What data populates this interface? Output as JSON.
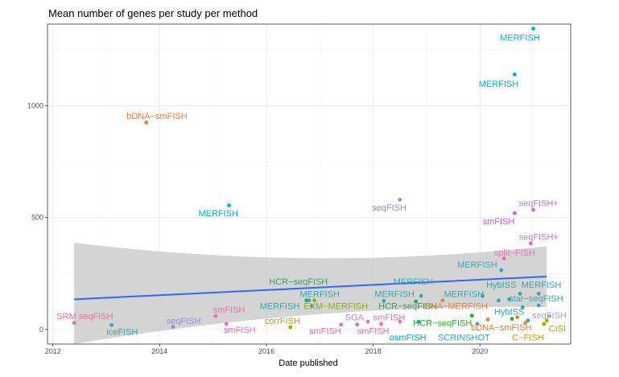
{
  "chart_data": {
    "type": "scatter",
    "title": "Mean number of genes per study per method",
    "xlabel": "Date published",
    "ylabel": "",
    "xlim": [
      2011.9,
      2021.7
    ],
    "ylim": [
      -65,
      1365
    ],
    "x_ticks": [
      {
        "value": 2012,
        "label": "2012"
      },
      {
        "value": 2014,
        "label": "2014"
      },
      {
        "value": 2016,
        "label": "2016"
      },
      {
        "value": 2018,
        "label": "2018"
      },
      {
        "value": 2020,
        "label": "2020"
      }
    ],
    "y_ticks": [
      {
        "value": 0,
        "label": "0"
      },
      {
        "value": 500,
        "label": "500"
      },
      {
        "value": 1000,
        "label": "1000"
      }
    ],
    "grid": true,
    "legend": "none",
    "trend": {
      "method": "linear",
      "x": [
        2012.4,
        2021.25
      ],
      "y": [
        135,
        237
      ],
      "band_lower": [
        -65,
        100
      ],
      "band_upper": [
        388,
        372
      ],
      "line_color": "#3366FF",
      "band_color": "#CCCCCC"
    },
    "points": [
      {
        "x": 2012.4,
        "y": 30,
        "color": "#E8709A"
      },
      {
        "x": 2013.1,
        "y": 20,
        "color": "#33A7A7"
      },
      {
        "x": 2013.75,
        "y": 925,
        "color": "#E8803A"
      },
      {
        "x": 2014.25,
        "y": 12,
        "color": "#8F8FDB"
      },
      {
        "x": 2015.05,
        "y": 60,
        "color": "#E870B0"
      },
      {
        "x": 2015.25,
        "y": 25,
        "color": "#E870B0"
      },
      {
        "x": 2015.3,
        "y": 555,
        "color": "#00B8C0"
      },
      {
        "x": 2016.45,
        "y": 10,
        "color": "#A8A800"
      },
      {
        "x": 2016.75,
        "y": 130,
        "color": "#2BA560"
      },
      {
        "x": 2016.8,
        "y": 130,
        "color": "#33A7B5"
      },
      {
        "x": 2016.85,
        "y": 105,
        "color": "#33A7B5"
      },
      {
        "x": 2016.9,
        "y": 130,
        "color": "#8FB000"
      },
      {
        "x": 2017.4,
        "y": 22,
        "color": "#E870B0"
      },
      {
        "x": 2017.7,
        "y": 22,
        "color": "#E8709A"
      },
      {
        "x": 2017.9,
        "y": 35,
        "color": "#E870D0"
      },
      {
        "x": 2018.15,
        "y": 25,
        "color": "#E870B0"
      },
      {
        "x": 2018.2,
        "y": 128,
        "color": "#33A7B5"
      },
      {
        "x": 2018.5,
        "y": 35,
        "color": "#E870D0"
      },
      {
        "x": 2018.5,
        "y": 580,
        "color": "#8F8FDB"
      },
      {
        "x": 2018.8,
        "y": 125,
        "color": "#2BA560"
      },
      {
        "x": 2018.85,
        "y": 35,
        "color": "#00A8C8"
      },
      {
        "x": 2018.9,
        "y": 150,
        "color": "#33A7B5"
      },
      {
        "x": 2019.3,
        "y": 130,
        "color": "#E8803A"
      },
      {
        "x": 2019.85,
        "y": 62,
        "color": "#22B222"
      },
      {
        "x": 2019.95,
        "y": 25,
        "color": "#33A0E0"
      },
      {
        "x": 2020.05,
        "y": 150,
        "color": "#33A7B5"
      },
      {
        "x": 2020.15,
        "y": 45,
        "color": "#E8803A"
      },
      {
        "x": 2020.35,
        "y": 130,
        "color": "#33A7A7"
      },
      {
        "x": 2020.4,
        "y": 265,
        "color": "#33A7B5"
      },
      {
        "x": 2020.45,
        "y": 318,
        "color": "#E870B0"
      },
      {
        "x": 2020.55,
        "y": 135,
        "color": "#33A7A7"
      },
      {
        "x": 2020.6,
        "y": 48,
        "color": "#22B222"
      },
      {
        "x": 2020.65,
        "y": 520,
        "color": "#E850D0"
      },
      {
        "x": 2020.65,
        "y": 1140,
        "color": "#00B8C0"
      },
      {
        "x": 2020.7,
        "y": 55,
        "color": "#E8803A"
      },
      {
        "x": 2020.75,
        "y": 160,
        "color": "#33A7B5"
      },
      {
        "x": 2020.8,
        "y": 100,
        "color": "#33A7B5"
      },
      {
        "x": 2020.85,
        "y": 30,
        "color": "#E8803A"
      },
      {
        "x": 2020.9,
        "y": 40,
        "color": "#33A7A7"
      },
      {
        "x": 2020.95,
        "y": 385,
        "color": "#D070E8"
      },
      {
        "x": 2021.0,
        "y": 535,
        "color": "#D070E8"
      },
      {
        "x": 2021.0,
        "y": 1345,
        "color": "#00B8C0"
      },
      {
        "x": 2021.1,
        "y": 160,
        "color": "#33A7B5"
      },
      {
        "x": 2021.1,
        "y": 108,
        "color": "#3399E8"
      },
      {
        "x": 2021.2,
        "y": 25,
        "color": "#A8A800"
      },
      {
        "x": 2021.25,
        "y": 40,
        "color": "#C8A000"
      },
      {
        "x": 2021.3,
        "y": 60,
        "color": "#A8A0E8"
      }
    ],
    "labels": [
      {
        "text": "MERFISH",
        "x": 2020.75,
        "y": 1305,
        "color": "#00B8C0"
      },
      {
        "text": "MERFISH",
        "x": 2020.35,
        "y": 1100,
        "color": "#00B8C0"
      },
      {
        "text": "bDNA−smFISH",
        "x": 2013.95,
        "y": 955,
        "color": "#E8803A"
      },
      {
        "text": "seqFISH",
        "x": 2018.3,
        "y": 545,
        "color": "#8F8FDB"
      },
      {
        "text": "MERFISH",
        "x": 2015.1,
        "y": 520,
        "color": "#00B8C0"
      },
      {
        "text": "seqFISH+",
        "x": 2021.1,
        "y": 565,
        "color": "#D070E8"
      },
      {
        "text": "smFISH",
        "x": 2020.35,
        "y": 485,
        "color": "#E850D0"
      },
      {
        "text": "seqFISH+",
        "x": 2021.1,
        "y": 415,
        "color": "#D070E8"
      },
      {
        "text": "split−FISH",
        "x": 2020.65,
        "y": 345,
        "color": "#E870B0"
      },
      {
        "text": "MERFISH",
        "x": 2019.95,
        "y": 290,
        "color": "#33A7B5"
      },
      {
        "text": "HCR−seqFISH",
        "x": 2016.6,
        "y": 215,
        "color": "#2BA560"
      },
      {
        "text": "MERFISH",
        "x": 2018.75,
        "y": 215,
        "color": "#33A7B5"
      },
      {
        "text": "HybISS",
        "x": 2020.4,
        "y": 200,
        "color": "#33A7A7"
      },
      {
        "text": "MERFISH",
        "x": 2021.15,
        "y": 200,
        "color": "#33A7B5"
      },
      {
        "text": "MERFISH",
        "x": 2017.0,
        "y": 160,
        "color": "#33A7B5"
      },
      {
        "text": "MERFISH",
        "x": 2018.4,
        "y": 160,
        "color": "#33A7B5"
      },
      {
        "text": "MERFISH",
        "x": 2019.7,
        "y": 160,
        "color": "#33A7B5"
      },
      {
        "text": "star−seqFISH",
        "x": 2021.05,
        "y": 140,
        "color": "#33A7B5"
      },
      {
        "text": "MERFISH",
        "x": 2016.25,
        "y": 105,
        "color": "#33A7B5"
      },
      {
        "text": "EXM−MERFISH",
        "x": 2017.3,
        "y": 105,
        "color": "#8FB000"
      },
      {
        "text": "HCR−seqFISH",
        "x": 2018.65,
        "y": 105,
        "color": "#2BA560"
      },
      {
        "text": "DNA−MERFISH",
        "x": 2019.55,
        "y": 105,
        "color": "#E8803A"
      },
      {
        "text": "HybISS",
        "x": 2020.55,
        "y": 80,
        "color": "#33A7A7"
      },
      {
        "text": "SRM seqFISH",
        "x": 2012.6,
        "y": 60,
        "color": "#E8709A"
      },
      {
        "text": "smFISH",
        "x": 2015.3,
        "y": 90,
        "color": "#E870B0"
      },
      {
        "text": "SGA",
        "x": 2017.65,
        "y": 55,
        "color": "#E870D0"
      },
      {
        "text": "smFISH",
        "x": 2018.3,
        "y": 55,
        "color": "#E870B0"
      },
      {
        "text": "seqFISH",
        "x": 2021.3,
        "y": 65,
        "color": "#A8A0E8"
      },
      {
        "text": "seqFISH",
        "x": 2014.45,
        "y": 40,
        "color": "#8F8FDB"
      },
      {
        "text": "corrFISH",
        "x": 2016.3,
        "y": 40,
        "color": "#A8A800"
      },
      {
        "text": "HCR−seqFISH",
        "x": 2019.3,
        "y": 30,
        "color": "#22B222"
      },
      {
        "text": "bDNA−smFISH",
        "x": 2020.4,
        "y": 10,
        "color": "#E8803A"
      },
      {
        "text": "CISI",
        "x": 2021.45,
        "y": 5,
        "color": "#C8A000"
      },
      {
        "text": "iceFISH",
        "x": 2013.3,
        "y": -10,
        "color": "#33A7A7"
      },
      {
        "text": "smFISH",
        "x": 2015.5,
        "y": 0,
        "color": "#E870B0"
      },
      {
        "text": "smFISH",
        "x": 2017.1,
        "y": -5,
        "color": "#E870B0"
      },
      {
        "text": "smFISH",
        "x": 2018.0,
        "y": -5,
        "color": "#E870B0"
      },
      {
        "text": "osmFISH",
        "x": 2018.65,
        "y": -35,
        "color": "#00A8C8"
      },
      {
        "text": "SCRINSHOT",
        "x": 2019.7,
        "y": -35,
        "color": "#33A0E0"
      },
      {
        "text": "C−FISH",
        "x": 2020.9,
        "y": -35,
        "color": "#C8A000"
      }
    ]
  }
}
